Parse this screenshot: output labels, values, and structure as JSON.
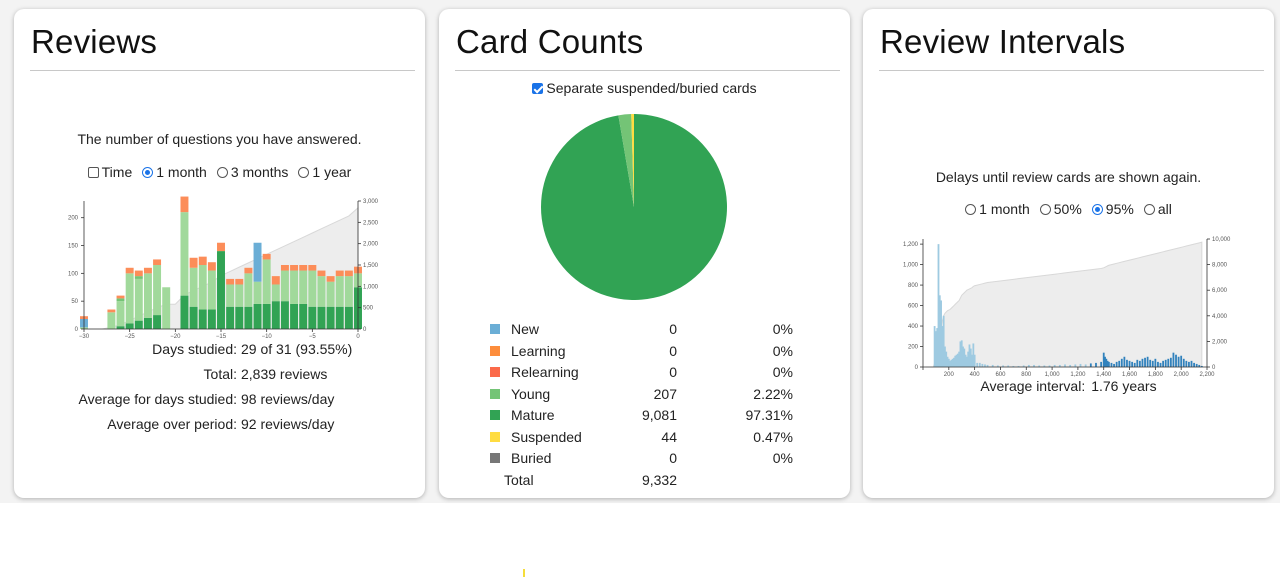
{
  "reviews": {
    "title": "Reviews",
    "subtitle": "The number of questions you have answered.",
    "options": [
      {
        "label": "Time",
        "kind": "checkbox",
        "checked": false
      },
      {
        "label": "1 month",
        "kind": "radio",
        "checked": true
      },
      {
        "label": "3 months",
        "kind": "radio",
        "checked": false
      },
      {
        "label": "1 year",
        "kind": "radio",
        "checked": false
      }
    ],
    "stats": [
      {
        "key": "Days studied:",
        "value": "29 of 31 (93.55%)"
      },
      {
        "key": "Total:",
        "value": "2,839 reviews"
      },
      {
        "key": "Average for days studied:",
        "value": "98 reviews/day"
      },
      {
        "key": "Average over period:",
        "value": "92 reviews/day"
      }
    ]
  },
  "card_counts": {
    "title": "Card Counts",
    "checkbox_label": "Separate suspended/buried cards",
    "checkbox_checked": true,
    "rows": [
      {
        "label": "New",
        "count": "0",
        "pct": "0%",
        "color": "#6baed6"
      },
      {
        "label": "Learning",
        "count": "0",
        "pct": "0%",
        "color": "#fd8d3c"
      },
      {
        "label": "Relearning",
        "count": "0",
        "pct": "0%",
        "color": "#fb6a4a"
      },
      {
        "label": "Young",
        "count": "207",
        "pct": "2.22%",
        "color": "#74c476"
      },
      {
        "label": "Mature",
        "count": "9,081",
        "pct": "97.31%",
        "color": "#31a354"
      },
      {
        "label": "Suspended",
        "count": "44",
        "pct": "0.47%",
        "color": "#ffdc41"
      },
      {
        "label": "Buried",
        "count": "0",
        "pct": "0%",
        "color": "#777777"
      }
    ],
    "total_label": "Total",
    "total_count": "9,332"
  },
  "review_intervals": {
    "title": "Review Intervals",
    "subtitle": "Delays until review cards are shown again.",
    "options": [
      {
        "label": "1 month",
        "checked": false
      },
      {
        "label": "50%",
        "checked": false
      },
      {
        "label": "95%",
        "checked": true
      },
      {
        "label": "all",
        "checked": false
      }
    ],
    "avg_key": "Average interval:",
    "avg_value": "1.76 years"
  },
  "chart_data": [
    {
      "type": "bar",
      "x_ticks": [
        "−30",
        "−25",
        "−20",
        "−15",
        "−10",
        "−5",
        "0"
      ],
      "y_ticks_left": [
        "0",
        "50",
        "100",
        "150",
        "200"
      ],
      "y_ticks_right": [
        "0",
        "500",
        "1,000",
        "1,500",
        "2,000",
        "2,500",
        "3,000"
      ],
      "ylim_left": [
        0,
        230
      ],
      "ylim_right": [
        0,
        3000
      ],
      "x": [
        -30,
        -29,
        -28,
        -27,
        -26,
        -25,
        -24,
        -23,
        -22,
        -21,
        -20,
        -19,
        -18,
        -17,
        -16,
        -15,
        -14,
        -13,
        -12,
        -11,
        -10,
        -9,
        -8,
        -7,
        -6,
        -5,
        -4,
        -3,
        -2,
        -1,
        0
      ],
      "series": [
        {
          "name": "Mature",
          "color": "#31a354",
          "values": [
            0,
            0,
            0,
            0,
            5,
            10,
            15,
            20,
            25,
            0,
            0,
            60,
            40,
            35,
            35,
            140,
            40,
            40,
            40,
            45,
            45,
            50,
            50,
            45,
            45,
            40,
            40,
            40,
            40,
            40,
            75
          ]
        },
        {
          "name": "Young",
          "color": "#a1d99b",
          "values": [
            3,
            0,
            0,
            30,
            45,
            90,
            75,
            80,
            90,
            75,
            0,
            150,
            70,
            80,
            70,
            0,
            40,
            40,
            60,
            40,
            80,
            30,
            55,
            60,
            60,
            65,
            55,
            45,
            55,
            55,
            25
          ]
        },
        {
          "name": "Learn",
          "color": "#74c476",
          "values": [
            0,
            0,
            0,
            0,
            5,
            0,
            5,
            0,
            0,
            0,
            0,
            0,
            0,
            0,
            0,
            0,
            0,
            0,
            0,
            0,
            0,
            0,
            0,
            0,
            0,
            0,
            0,
            0,
            0,
            0,
            0
          ]
        },
        {
          "name": "New",
          "color": "#6baed6",
          "values": [
            15,
            0,
            0,
            0,
            0,
            0,
            0,
            0,
            0,
            0,
            0,
            0,
            0,
            0,
            0,
            0,
            0,
            0,
            0,
            70,
            0,
            0,
            0,
            0,
            0,
            0,
            0,
            0,
            0,
            0,
            0
          ]
        },
        {
          "name": "Relearn",
          "color": "#fc8d59",
          "values": [
            5,
            0,
            0,
            5,
            5,
            10,
            10,
            10,
            10,
            0,
            0,
            28,
            18,
            15,
            15,
            15,
            10,
            10,
            10,
            0,
            10,
            15,
            10,
            10,
            10,
            10,
            10,
            10,
            10,
            10,
            12
          ]
        }
      ],
      "cumulative": [
        0,
        0,
        0,
        40,
        100,
        200,
        300,
        400,
        500,
        580,
        580,
        800,
        900,
        1000,
        1100,
        1250,
        1350,
        1450,
        1550,
        1650,
        1750,
        1850,
        1950,
        2050,
        2150,
        2250,
        2350,
        2450,
        2550,
        2650,
        2839
      ]
    },
    {
      "type": "pie",
      "labels": [
        "Mature",
        "Young",
        "Suspended"
      ],
      "values": [
        9081,
        207,
        44
      ],
      "colors": [
        "#31a354",
        "#74c476",
        "#ffdc41"
      ]
    },
    {
      "type": "bar",
      "x_ticks": [
        "0",
        "200",
        "400",
        "600",
        "800",
        "1,000",
        "1,200",
        "1,400",
        "1,600",
        "1,800",
        "2,000",
        "2,200"
      ],
      "y_ticks_left": [
        "0",
        "200",
        "400",
        "600",
        "800",
        "1,000",
        "1,200"
      ],
      "y_ticks_right": [
        "0",
        "2,000",
        "4,000",
        "6,000",
        "8,000",
        "10,000"
      ],
      "xlim": [
        0,
        2200
      ],
      "ylim_left": [
        0,
        1250
      ],
      "ylim_right": [
        0,
        10000
      ],
      "x": [
        20,
        30,
        40,
        50,
        60,
        70,
        80,
        90,
        100,
        110,
        120,
        130,
        140,
        150,
        160,
        170,
        180,
        190,
        200,
        210,
        220,
        230,
        240,
        250,
        260,
        270,
        280,
        290,
        300,
        310,
        320,
        330,
        340,
        350,
        360,
        370,
        380,
        390,
        400,
        420,
        440,
        460,
        480,
        500,
        540,
        580,
        620,
        660,
        700,
        740,
        780,
        820,
        860,
        900,
        940,
        980,
        1020,
        1060,
        1100,
        1140,
        1180,
        1220,
        1260,
        1300,
        1340,
        1380,
        1400,
        1410,
        1420,
        1430,
        1440,
        1460,
        1480,
        1500,
        1520,
        1540,
        1560,
        1580,
        1600,
        1620,
        1640,
        1660,
        1680,
        1700,
        1720,
        1740,
        1760,
        1780,
        1800,
        1820,
        1840,
        1860,
        1880,
        1900,
        1920,
        1940,
        1960,
        1980,
        2000,
        2020,
        2040,
        2060,
        2080,
        2100,
        2120,
        2140,
        2160
      ],
      "values": [
        0,
        0,
        0,
        0,
        0,
        0,
        0,
        400,
        350,
        380,
        1200,
        700,
        650,
        400,
        500,
        200,
        150,
        100,
        80,
        60,
        70,
        80,
        90,
        110,
        120,
        130,
        150,
        250,
        260,
        200,
        180,
        120,
        100,
        150,
        220,
        180,
        120,
        230,
        120,
        40,
        40,
        30,
        25,
        20,
        20,
        15,
        15,
        15,
        10,
        10,
        15,
        20,
        20,
        15,
        15,
        15,
        20,
        20,
        25,
        20,
        25,
        30,
        25,
        35,
        40,
        50,
        140,
        100,
        80,
        60,
        50,
        40,
        30,
        50,
        60,
        80,
        100,
        70,
        60,
        50,
        40,
        70,
        60,
        80,
        90,
        100,
        70,
        60,
        80,
        50,
        40,
        60,
        70,
        80,
        90,
        140,
        120,
        100,
        110,
        80,
        60,
        50,
        60,
        40,
        30,
        20,
        10
      ],
      "cumulative_right": [
        0,
        0,
        0,
        0,
        0,
        0,
        0,
        300,
        600,
        900,
        1900,
        2600,
        3200,
        3600,
        4000,
        4200,
        4300,
        4400,
        4450,
        4500,
        4600,
        4700,
        4800,
        4900,
        5000,
        5100,
        5200,
        5400,
        5600,
        5700,
        5800,
        5900,
        6000,
        6050,
        6100,
        6150,
        6200,
        6300,
        6350,
        6400,
        6450,
        6500,
        6550,
        6600,
        6650,
        6700,
        6750,
        6800,
        6850,
        6900,
        6950,
        7000,
        7050,
        7100,
        7150,
        7200,
        7250,
        7300,
        7350,
        7400,
        7450,
        7500,
        7550,
        7600,
        7650,
        7700,
        7750,
        7800,
        7850,
        7900,
        7950,
        8000,
        8050,
        8100,
        8150,
        8200,
        8250,
        8300,
        8350,
        8400,
        8450,
        8500,
        8550,
        8600,
        8650,
        8700,
        8750,
        8800,
        8850,
        8900,
        8950,
        9000,
        9050,
        9100,
        9150,
        9200,
        9250,
        9300,
        9350,
        9400,
        9450,
        9500,
        9550,
        9600,
        9650,
        9700,
        9750
      ]
    }
  ]
}
